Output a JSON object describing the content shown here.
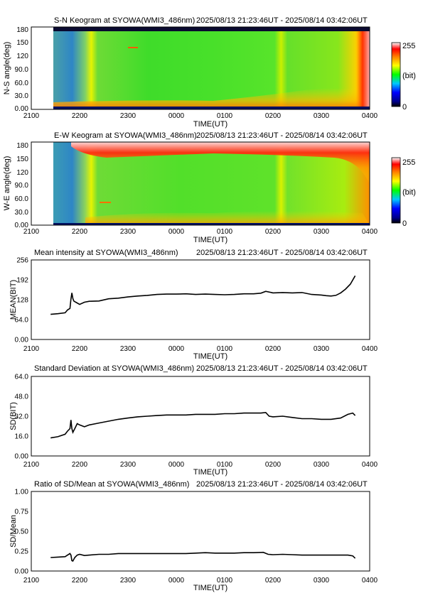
{
  "x_axis": {
    "ticks": [
      "2100",
      "2200",
      "2300",
      "0000",
      "0100",
      "0200",
      "0300",
      "0400"
    ],
    "label": "TIME(UT)",
    "range_hours": [
      21,
      28
    ],
    "data_range_hours": [
      21.396,
      27.702
    ]
  },
  "time_range": "2025/08/13 21:23:46UT - 2025/08/14 03:42:06UT",
  "colorbar": {
    "max_label": "255",
    "unit_label": "(bit)",
    "min_label": "0"
  },
  "palette": {
    "line": "#000000",
    "axis": "#000000"
  },
  "chart_data": [
    {
      "type": "heatmap",
      "title": "S-N Keogram at SYOWA(WMI3_486nm)",
      "ylabel": "N-S angle(deg)",
      "yticks": [
        "180",
        "150",
        "120",
        "90.0",
        "60.0",
        "30.0",
        "0.00"
      ],
      "ylim": [
        0,
        180
      ],
      "value_range": [
        0,
        255
      ]
    },
    {
      "type": "heatmap",
      "title": "E-W Keogram at SYOWA(WMI3_486nm)",
      "ylabel": "W-E angle(deg)",
      "yticks": [
        "180",
        "150",
        "120",
        "90.0",
        "60.0",
        "30.0",
        "0.00"
      ],
      "ylim": [
        0,
        180
      ],
      "value_range": [
        0,
        255
      ]
    },
    {
      "type": "line",
      "title": "Mean intensity at SYOWA(WMI3_486nm)",
      "ylabel": "MEAN(BIT)",
      "yticks": [
        "256",
        "192",
        "128",
        "64.0",
        "0.00"
      ],
      "ylim": [
        0,
        256
      ],
      "x": [
        21.4,
        21.55,
        21.7,
        21.75,
        21.8,
        21.82,
        21.84,
        21.86,
        21.88,
        21.92,
        22.0,
        22.1,
        22.2,
        22.4,
        22.6,
        22.8,
        23.0,
        23.2,
        23.4,
        23.6,
        23.8,
        24.0,
        24.2,
        24.4,
        24.6,
        24.8,
        25.0,
        25.2,
        25.4,
        25.6,
        25.75,
        25.85,
        26.0,
        26.2,
        26.4,
        26.6,
        26.8,
        27.0,
        27.1,
        27.2,
        27.3,
        27.4,
        27.5,
        27.6,
        27.7
      ],
      "y": [
        81,
        83,
        86,
        95,
        100,
        130,
        150,
        132,
        124,
        120,
        113,
        120,
        123,
        124,
        131,
        133,
        137,
        140,
        142,
        145,
        146,
        146,
        147,
        145,
        146,
        145,
        144,
        145,
        147,
        147,
        149,
        155,
        150,
        151,
        150,
        151,
        145,
        143,
        141,
        140,
        142,
        150,
        162,
        178,
        205
      ]
    },
    {
      "type": "line",
      "title": "Standard Deviation at SYOWA(WMI3_486nm)",
      "ylabel": "SD(BIT)",
      "yticks": [
        "64.0",
        "48.0",
        "32.0",
        "16.0",
        "0.00"
      ],
      "ylim": [
        0,
        64
      ],
      "x": [
        21.4,
        21.55,
        21.7,
        21.75,
        21.8,
        21.82,
        21.84,
        21.86,
        21.9,
        21.95,
        22.0,
        22.1,
        22.2,
        22.4,
        22.6,
        22.8,
        23.0,
        23.2,
        23.4,
        23.6,
        23.8,
        24.0,
        24.2,
        24.4,
        24.6,
        24.8,
        25.0,
        25.2,
        25.4,
        25.6,
        25.75,
        25.85,
        25.92,
        26.0,
        26.2,
        26.4,
        26.6,
        26.8,
        27.0,
        27.2,
        27.4,
        27.55,
        27.65,
        27.7
      ],
      "y": [
        14.5,
        15.5,
        17.5,
        20,
        22,
        29,
        22,
        19,
        22,
        26,
        25,
        23.5,
        25,
        26.5,
        28,
        29.5,
        30.5,
        31.5,
        32,
        32.5,
        33,
        33,
        33,
        33.5,
        33.5,
        33.5,
        34,
        34,
        34.5,
        34.5,
        34.5,
        35,
        32,
        31.5,
        32,
        31,
        30,
        30,
        29.5,
        29.5,
        30.5,
        33.5,
        34.5,
        32.5
      ]
    },
    {
      "type": "line",
      "title": "Ratio of SD/Mean at SYOWA(WMI3_486nm)",
      "ylabel": "SD/Mean",
      "yticks": [
        "1.00",
        "0.75",
        "0.50",
        "0.25",
        "0.00"
      ],
      "ylim": [
        0,
        1
      ],
      "x": [
        21.4,
        21.55,
        21.7,
        21.75,
        21.8,
        21.82,
        21.84,
        21.86,
        21.9,
        21.95,
        22.0,
        22.1,
        22.2,
        22.4,
        22.6,
        22.8,
        23.0,
        23.2,
        23.4,
        23.6,
        23.8,
        24.0,
        24.2,
        24.4,
        24.6,
        24.8,
        25.0,
        25.2,
        25.4,
        25.6,
        25.8,
        25.9,
        26.0,
        26.2,
        26.4,
        26.6,
        26.8,
        27.0,
        27.2,
        27.4,
        27.55,
        27.65,
        27.7
      ],
      "y": [
        0.17,
        0.175,
        0.18,
        0.2,
        0.22,
        0.2,
        0.13,
        0.125,
        0.17,
        0.2,
        0.21,
        0.195,
        0.2,
        0.21,
        0.21,
        0.22,
        0.22,
        0.22,
        0.22,
        0.22,
        0.22,
        0.22,
        0.22,
        0.225,
        0.23,
        0.225,
        0.225,
        0.225,
        0.23,
        0.23,
        0.235,
        0.21,
        0.205,
        0.21,
        0.205,
        0.2,
        0.2,
        0.2,
        0.2,
        0.2,
        0.2,
        0.19,
        0.16
      ]
    }
  ]
}
